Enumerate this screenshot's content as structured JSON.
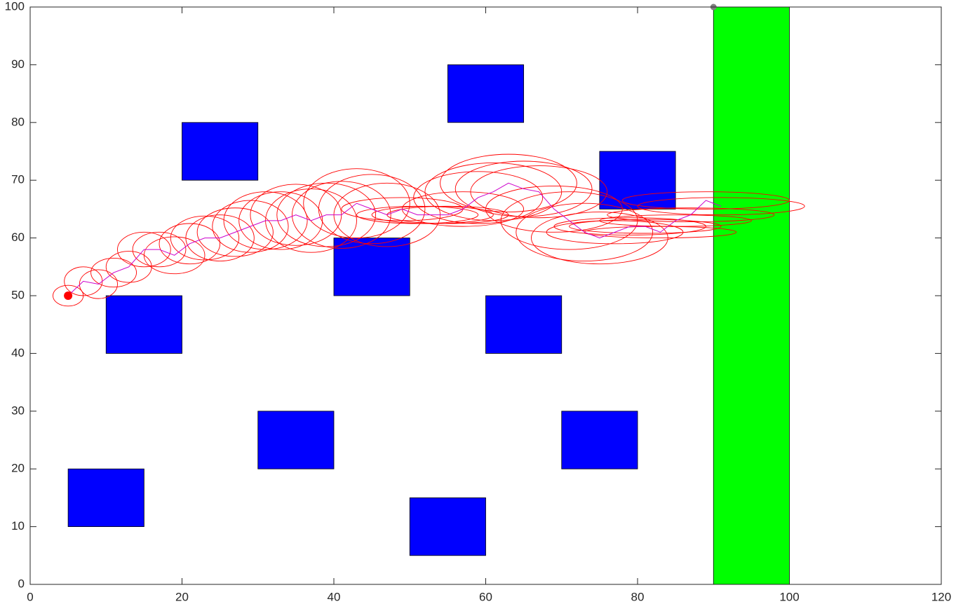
{
  "chart_data": {
    "type": "planner",
    "xlim": [
      0,
      120
    ],
    "ylim": [
      0,
      100
    ],
    "xticks": [
      0,
      20,
      40,
      60,
      80,
      100,
      120
    ],
    "yticks": [
      0,
      10,
      20,
      30,
      40,
      50,
      60,
      70,
      80,
      90,
      100
    ],
    "obstacle_color": "#0000ff",
    "obstacles": [
      [
        5,
        10,
        10,
        10
      ],
      [
        10,
        40,
        10,
        10
      ],
      [
        20,
        70,
        10,
        10
      ],
      [
        30,
        20,
        10,
        10
      ],
      [
        40,
        50,
        10,
        10
      ],
      [
        50,
        5,
        10,
        10
      ],
      [
        55,
        80,
        10,
        10
      ],
      [
        60,
        40,
        10,
        10
      ],
      [
        70,
        20,
        10,
        10
      ],
      [
        75,
        65,
        10,
        10
      ]
    ],
    "goal_color": "#00ff00",
    "goal": [
      90,
      0,
      10,
      100
    ],
    "path_color": "#cc00cc",
    "ellipse_color": "#ff0000",
    "path": {
      "x": [
        5,
        7,
        9,
        11,
        13,
        15,
        17,
        19,
        21,
        23,
        25,
        27,
        29,
        31,
        33,
        35,
        37,
        39,
        41,
        43,
        45,
        47,
        49,
        51,
        53,
        55,
        57,
        59,
        61,
        63,
        65,
        67,
        69,
        71,
        73,
        75,
        77,
        79,
        81,
        83,
        85,
        87,
        89,
        91
      ],
      "y": [
        50,
        52.5,
        52,
        54,
        55,
        58,
        58,
        57,
        59,
        60,
        60,
        61,
        62,
        63,
        63,
        64,
        63,
        64,
        64,
        66,
        65,
        64,
        65,
        64,
        64,
        64,
        65,
        67,
        68,
        69.5,
        68.5,
        68,
        65,
        63,
        61,
        60,
        61,
        62,
        62,
        61,
        63,
        64,
        66.5,
        65.5
      ],
      "rx": [
        2,
        2.5,
        2.5,
        3,
        3,
        3.5,
        3.5,
        4,
        4,
        4.5,
        4.5,
        5,
        5,
        5.5,
        5.5,
        6,
        6,
        6.5,
        6.5,
        7,
        7,
        7,
        8,
        8,
        8,
        8,
        8,
        8.5,
        9,
        9,
        9,
        9,
        9,
        9,
        9,
        9,
        9,
        10,
        10,
        10,
        10,
        11,
        11,
        11
      ],
      "ry": [
        1.8,
        2.5,
        2.5,
        2.5,
        2.7,
        3,
        3,
        3.2,
        3.5,
        3.8,
        4,
        4.2,
        4.5,
        5,
        5,
        5.3,
        5.5,
        5.5,
        5.8,
        6,
        6,
        5.5,
        2,
        1.5,
        1.5,
        1.5,
        3,
        4.5,
        5,
        5,
        4.8,
        4.5,
        4,
        5,
        5,
        4.5,
        2,
        1.5,
        1.2,
        1,
        1,
        1.2,
        1.5,
        1.5
      ]
    },
    "points": [
      {
        "x": 5,
        "y": 50,
        "color": "#ff0000"
      },
      {
        "x": 90,
        "y": 100,
        "color": "#808080"
      }
    ]
  }
}
